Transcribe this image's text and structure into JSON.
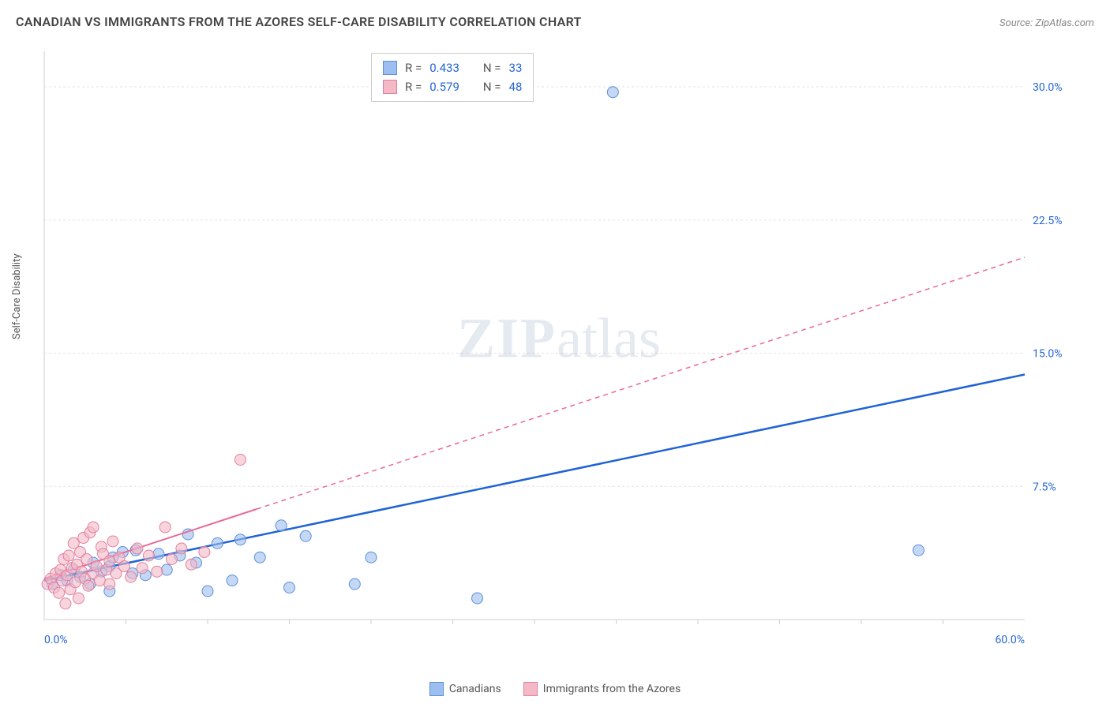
{
  "header": {
    "title": "CANADIAN VS IMMIGRANTS FROM THE AZORES SELF-CARE DISABILITY CORRELATION CHART",
    "source": "Source: ZipAtlas.com"
  },
  "watermark": {
    "zip": "ZIP",
    "atlas": "atlas"
  },
  "chart": {
    "type": "scatter",
    "y_axis_label": "Self-Care Disability",
    "xlim": [
      0,
      60
    ],
    "ylim": [
      0,
      32
    ],
    "x_tick_interval": 5,
    "x_min_label": "0.0%",
    "x_max_label": "60.0%",
    "y_ticks": [
      {
        "value": 7.5,
        "label": "7.5%"
      },
      {
        "value": 15.0,
        "label": "15.0%"
      },
      {
        "value": 22.5,
        "label": "22.5%"
      },
      {
        "value": 30.0,
        "label": "30.0%"
      }
    ],
    "grid_color": "#e3e3e3",
    "axis_color": "#cfcfcf",
    "background_color": "#ffffff",
    "series": [
      {
        "key": "canadians",
        "label": "Canadians",
        "fill": "#9dbef0",
        "stroke": "#5a8fd6",
        "marker_radius": 7,
        "r_label": "R =",
        "r_value": "0.433",
        "n_label": "N =",
        "n_value": "33",
        "trend": {
          "color": "#1f63d6",
          "width": 2.5,
          "dash": "",
          "x1": 0,
          "y1": 2.2,
          "x2": 60,
          "y2": 13.8,
          "solid_until_x": 60
        },
        "points": [
          [
            0.5,
            2.0
          ],
          [
            1.0,
            2.5
          ],
          [
            1.4,
            2.2
          ],
          [
            1.8,
            2.8
          ],
          [
            2.2,
            2.4
          ],
          [
            2.8,
            2.0
          ],
          [
            3.0,
            3.2
          ],
          [
            3.5,
            2.7
          ],
          [
            4.0,
            3.0
          ],
          [
            4.0,
            1.6
          ],
          [
            4.2,
            3.5
          ],
          [
            4.8,
            3.8
          ],
          [
            5.4,
            2.6
          ],
          [
            5.6,
            3.9
          ],
          [
            6.2,
            2.5
          ],
          [
            7.0,
            3.7
          ],
          [
            7.5,
            2.8
          ],
          [
            8.3,
            3.6
          ],
          [
            8.8,
            4.8
          ],
          [
            9.3,
            3.2
          ],
          [
            10.0,
            1.6
          ],
          [
            10.6,
            4.3
          ],
          [
            11.5,
            2.2
          ],
          [
            12.0,
            4.5
          ],
          [
            13.2,
            3.5
          ],
          [
            14.5,
            5.3
          ],
          [
            15.0,
            1.8
          ],
          [
            16.0,
            4.7
          ],
          [
            19.0,
            2.0
          ],
          [
            20.0,
            3.5
          ],
          [
            26.5,
            1.2
          ],
          [
            34.8,
            29.7
          ],
          [
            53.5,
            3.9
          ]
        ]
      },
      {
        "key": "azores",
        "label": "Immigrants from the Azores",
        "fill": "#f4b9c7",
        "stroke": "#e17ea0",
        "marker_radius": 7,
        "r_label": "R =",
        "r_value": "0.579",
        "n_label": "N =",
        "n_value": "48",
        "trend": {
          "color": "#e96a94",
          "width": 2,
          "dash": "6 5",
          "x1": 0,
          "y1": 2.3,
          "x2": 60,
          "y2": 20.4,
          "solid_until_x": 13
        },
        "points": [
          [
            0.2,
            2.0
          ],
          [
            0.4,
            2.3
          ],
          [
            0.6,
            1.8
          ],
          [
            0.7,
            2.6
          ],
          [
            0.9,
            1.5
          ],
          [
            1.0,
            2.8
          ],
          [
            1.1,
            2.2
          ],
          [
            1.2,
            3.4
          ],
          [
            1.3,
            0.9
          ],
          [
            1.4,
            2.5
          ],
          [
            1.5,
            3.6
          ],
          [
            1.6,
            1.7
          ],
          [
            1.7,
            2.9
          ],
          [
            1.8,
            4.3
          ],
          [
            1.9,
            2.1
          ],
          [
            2.0,
            3.1
          ],
          [
            2.1,
            1.2
          ],
          [
            2.2,
            3.8
          ],
          [
            2.3,
            2.7
          ],
          [
            2.4,
            4.6
          ],
          [
            2.5,
            2.3
          ],
          [
            2.6,
            3.4
          ],
          [
            2.7,
            1.9
          ],
          [
            2.8,
            4.9
          ],
          [
            3.0,
            2.6
          ],
          [
            3.0,
            5.2
          ],
          [
            3.2,
            3.0
          ],
          [
            3.4,
            2.2
          ],
          [
            3.5,
            4.1
          ],
          [
            3.6,
            3.7
          ],
          [
            3.8,
            2.8
          ],
          [
            4.0,
            3.3
          ],
          [
            4.0,
            2.0
          ],
          [
            4.2,
            4.4
          ],
          [
            4.4,
            2.6
          ],
          [
            4.6,
            3.5
          ],
          [
            4.9,
            3.0
          ],
          [
            5.3,
            2.4
          ],
          [
            5.7,
            4.0
          ],
          [
            6.0,
            2.9
          ],
          [
            6.4,
            3.6
          ],
          [
            6.9,
            2.7
          ],
          [
            7.4,
            5.2
          ],
          [
            7.8,
            3.4
          ],
          [
            8.4,
            4.0
          ],
          [
            9.0,
            3.1
          ],
          [
            9.8,
            3.8
          ],
          [
            12.0,
            9.0
          ]
        ]
      }
    ]
  }
}
